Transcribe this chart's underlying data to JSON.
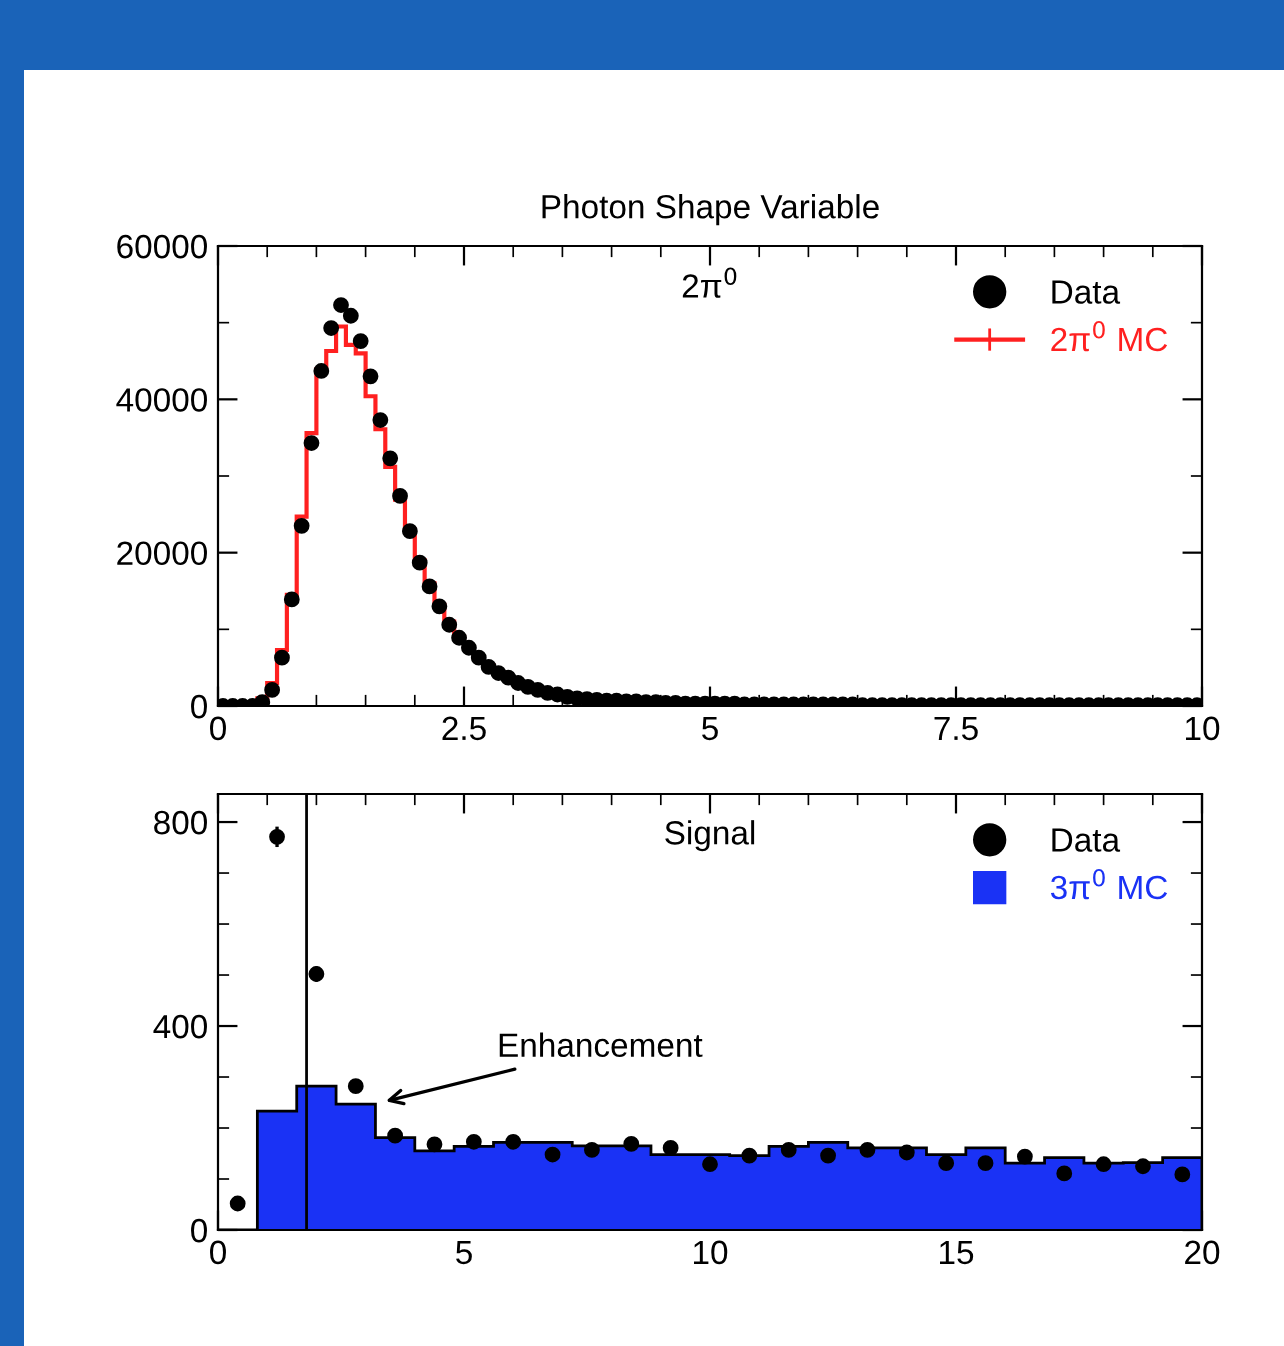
{
  "chart_data": [
    {
      "type": "histogram",
      "title": "Photon Shape Variable",
      "annotations": [
        "2π$^{0}$"
      ],
      "legend": "top right",
      "bins": [
        0,
        0.1,
        0.2,
        0.3,
        0.4,
        0.5,
        0.6,
        0.7,
        0.8,
        0.9,
        1,
        1.1,
        1.2,
        1.3,
        1.4,
        1.5,
        1.6,
        1.7,
        1.8,
        1.9,
        2,
        2.1,
        2.2,
        2.3,
        2.4,
        2.5,
        2.6,
        2.7,
        2.8,
        2.9,
        3,
        3.1,
        3.2,
        3.3,
        3.4,
        3.5,
        3.6,
        3.7,
        3.8,
        3.9,
        4,
        4.1,
        4.2,
        4.3,
        4.4,
        4.5,
        4.6,
        4.7,
        4.8,
        4.9,
        5,
        5.1,
        5.2,
        5.3,
        5.4,
        5.5,
        5.6,
        5.7,
        5.8,
        5.9,
        6,
        6.1,
        6.2,
        6.3,
        6.4,
        6.5,
        6.6,
        6.7,
        6.8,
        6.9,
        7,
        7.1,
        7.2,
        7.3,
        7.4,
        7.5,
        7.6,
        7.7,
        7.8,
        7.9,
        8,
        8.1,
        8.2,
        8.3,
        8.4,
        8.5,
        8.6,
        8.7,
        8.8,
        8.9,
        9,
        9.1,
        9.2,
        9.3,
        9.4,
        9.5,
        9.6,
        9.7,
        9.8,
        9.9,
        10
      ],
      "series": [
        {
          "name": "Data",
          "type": "scatter",
          "marker": "circle",
          "color": "#000000",
          "x": [
            0.05,
            0.15,
            0.25,
            0.35,
            0.45,
            0.55,
            0.65,
            0.75,
            0.85,
            0.95,
            1.05,
            1.15,
            1.25,
            1.35,
            1.45,
            1.55,
            1.65,
            1.75,
            1.85,
            1.95,
            2.05,
            2.15,
            2.25,
            2.35,
            2.45,
            2.55,
            2.65,
            2.75,
            2.85,
            2.95,
            3.05,
            3.15,
            3.25,
            3.35,
            3.45,
            3.55,
            3.65,
            3.75,
            3.85,
            3.95,
            4.05,
            4.15,
            4.25,
            4.35,
            4.45,
            4.55,
            4.65,
            4.75,
            4.85,
            4.95,
            5.05,
            5.15,
            5.25,
            5.35,
            5.45,
            5.55,
            5.65,
            5.75,
            5.85,
            5.95,
            6.05,
            6.15,
            6.25,
            6.35,
            6.45,
            6.55,
            6.65,
            6.75,
            6.85,
            6.95,
            7.05,
            7.15,
            7.25,
            7.35,
            7.45,
            7.55,
            7.65,
            7.75,
            7.85,
            7.95,
            8.05,
            8.15,
            8.25,
            8.35,
            8.45,
            8.55,
            8.65,
            8.75,
            8.85,
            8.95,
            9.05,
            9.15,
            9.25,
            9.35,
            9.45,
            9.55,
            9.65,
            9.75,
            9.85,
            9.95
          ],
          "values": [
            0,
            0,
            0,
            0,
            500,
            2100,
            6300,
            13900,
            23500,
            34300,
            43700,
            49300,
            52300,
            50900,
            47600,
            43000,
            37300,
            32300,
            27400,
            22800,
            18700,
            15600,
            13000,
            10600,
            8900,
            7600,
            6300,
            5100,
            4300,
            3700,
            3000,
            2500,
            2100,
            1700,
            1500,
            1200,
            1000,
            900,
            800,
            700,
            700,
            600,
            600,
            500,
            500,
            400,
            400,
            300,
            300,
            300,
            300,
            300,
            300,
            200,
            200,
            200,
            200,
            200,
            200,
            200,
            200,
            200,
            200,
            200,
            200,
            100,
            100,
            100,
            100,
            100,
            100,
            100,
            100,
            100,
            100,
            100,
            100,
            100,
            100,
            100,
            100,
            100,
            100,
            100,
            100,
            100,
            100,
            100,
            100,
            100,
            100,
            100,
            100,
            100,
            100,
            100,
            100,
            100,
            100,
            100
          ]
        },
        {
          "name": "2π$^{0}$ MC",
          "color": "#ff2020",
          "values": [
            0,
            0,
            0,
            0,
            1000,
            3000,
            7300,
            14500,
            24700,
            35600,
            43900,
            46300,
            49500,
            47100,
            46000,
            40400,
            36100,
            31200,
            26900,
            23000,
            19000,
            16000,
            13200,
            11000,
            9100,
            7600,
            6300,
            5300,
            4400,
            3700,
            3100,
            2600,
            2200,
            1900,
            1600,
            1400,
            1200,
            1000,
            900,
            800,
            700,
            700,
            600,
            600,
            500,
            500,
            400,
            400,
            400,
            300,
            300,
            300,
            300,
            300,
            200,
            200,
            200,
            200,
            200,
            200,
            200,
            200,
            200,
            200,
            200,
            100,
            100,
            100,
            100,
            100,
            100,
            100,
            100,
            100,
            100,
            100,
            100,
            100,
            100,
            100,
            100,
            100,
            100,
            100,
            100,
            100,
            100,
            100,
            100,
            100,
            100,
            100,
            100,
            100,
            100,
            100,
            100,
            100,
            100,
            100
          ]
        }
      ],
      "xlim": [
        0,
        10
      ],
      "ylim": [
        0,
        60000
      ],
      "xticks": [
        0,
        {
          "value": 0.5,
          "label": null
        },
        {
          "value": 1,
          "label": null
        },
        {
          "value": 1.5,
          "label": null
        },
        {
          "value": 2,
          "label": null
        },
        2.5,
        {
          "value": 3,
          "label": null
        },
        {
          "value": 3.5,
          "label": null
        },
        {
          "value": 4,
          "label": null
        },
        {
          "value": 4.5,
          "label": null
        },
        5,
        {
          "value": 5.5,
          "label": null
        },
        {
          "value": 6,
          "label": null
        },
        {
          "value": 6.5,
          "label": null
        },
        {
          "value": 7,
          "label": null
        },
        7.5,
        {
          "value": 8,
          "label": null
        },
        {
          "value": 8.5,
          "label": null
        },
        {
          "value": 9,
          "label": null
        },
        {
          "value": 9.5,
          "label": null
        },
        10
      ],
      "yticks": [
        0,
        {
          "value": 10000,
          "label": null
        },
        20000,
        {
          "value": 30000,
          "label": null
        },
        40000,
        {
          "value": 50000,
          "label": null
        },
        60000
      ]
    },
    {
      "type": "histogram",
      "annotations": [
        "Signal",
        {
          "text": "Enhancement",
          "x": 3.3,
          "y": 250
        }
      ],
      "legend": "top right",
      "bins": [
        0,
        0.8,
        1.6,
        2.4,
        3.2,
        4.0,
        4.8,
        5.6,
        6.4,
        7.2,
        8.0,
        8.8,
        9.6,
        10.4,
        11.2,
        12.0,
        12.8,
        13.6,
        14.4,
        15.2,
        16.0,
        16.8,
        17.6,
        18.4,
        19.2,
        20
      ],
      "series": [
        {
          "name": "Data",
          "type": "scatter",
          "marker": "circle",
          "color": "#000000",
          "x": [
            0.4,
            1.2,
            2.0,
            2.8,
            3.6,
            4.4,
            5.2,
            6.0,
            6.8,
            7.6,
            8.4,
            9.2,
            10.0,
            10.8,
            11.6,
            12.4,
            13.2,
            14.0,
            14.8,
            15.6,
            16.4,
            17.2,
            18.0,
            18.8,
            19.6
          ],
          "values": [
            52,
            771,
            502,
            282,
            185,
            168,
            173,
            173,
            148,
            157,
            169,
            161,
            129,
            146,
            157,
            146,
            157,
            152,
            131,
            131,
            144,
            111,
            129,
            125,
            109
          ],
          "errors": [
            null,
            20,
            15,
            10,
            null,
            null,
            null,
            null,
            null,
            null,
            null,
            null,
            null,
            null,
            null,
            null,
            null,
            null,
            null,
            null,
            null,
            null,
            null,
            null,
            null
          ]
        },
        {
          "name": "3π$^{0}$ MC",
          "color": "#1a32f5",
          "values": [
            0,
            233,
            282,
            247,
            181,
            155,
            164,
            172,
            172,
            165,
            165,
            148,
            148,
            146,
            164,
            172,
            161,
            161,
            148,
            161,
            131,
            142,
            131,
            132,
            142
          ]
        }
      ],
      "ref_lines": [
        {
          "axis": "x",
          "value": 1.8,
          "color": "#000000"
        }
      ],
      "xlim": [
        0,
        20
      ],
      "ylim": [
        0,
        855
      ],
      "xticks": [
        0,
        {
          "value": 1,
          "label": null
        },
        {
          "value": 2,
          "label": null
        },
        {
          "value": 3,
          "label": null
        },
        {
          "value": 4,
          "label": null
        },
        5,
        {
          "value": 6,
          "label": null
        },
        {
          "value": 7,
          "label": null
        },
        {
          "value": 8,
          "label": null
        },
        {
          "value": 9,
          "label": null
        },
        10,
        {
          "value": 11,
          "label": null
        },
        {
          "value": 12,
          "label": null
        },
        {
          "value": 13,
          "label": null
        },
        {
          "value": 14,
          "label": null
        },
        15,
        {
          "value": 16,
          "label": null
        },
        {
          "value": 17,
          "label": null
        },
        {
          "value": 18,
          "label": null
        },
        {
          "value": 19,
          "label": null
        },
        20
      ],
      "yticks": [
        0,
        {
          "value": 100,
          "label": null
        },
        {
          "value": 200,
          "label": null
        },
        {
          "value": 300,
          "label": null
        },
        400,
        {
          "value": 500,
          "label": null
        },
        {
          "value": 600,
          "label": null
        },
        {
          "value": 700,
          "label": null
        },
        800
      ]
    }
  ]
}
